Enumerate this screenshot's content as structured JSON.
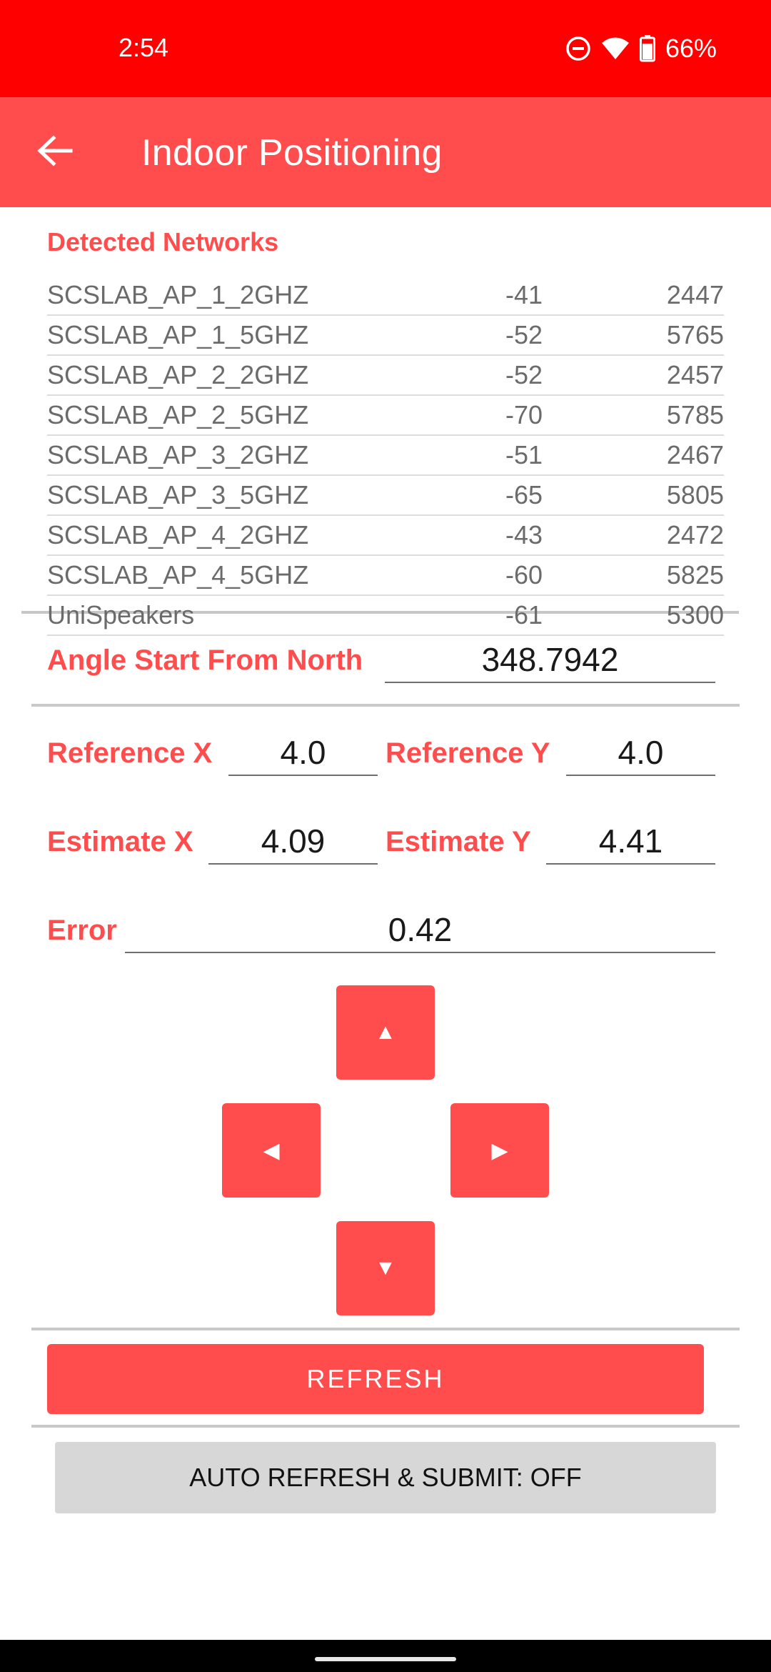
{
  "status_bar": {
    "time": "2:54",
    "battery": "66%"
  },
  "app_bar": {
    "title": "Indoor Positioning"
  },
  "networks": {
    "title": "Detected Networks",
    "rows": [
      {
        "ssid": "SCSLAB_AP_1_2GHZ",
        "rssi": "-41",
        "freq": "2447"
      },
      {
        "ssid": "SCSLAB_AP_1_5GHZ",
        "rssi": "-52",
        "freq": "5765"
      },
      {
        "ssid": "SCSLAB_AP_2_2GHZ",
        "rssi": "-52",
        "freq": "2457"
      },
      {
        "ssid": "SCSLAB_AP_2_5GHZ",
        "rssi": "-70",
        "freq": "5785"
      },
      {
        "ssid": "SCSLAB_AP_3_2GHZ",
        "rssi": "-51",
        "freq": "2467"
      },
      {
        "ssid": "SCSLAB_AP_3_5GHZ",
        "rssi": "-65",
        "freq": "5805"
      },
      {
        "ssid": "SCSLAB_AP_4_2GHZ",
        "rssi": "-43",
        "freq": "2472"
      },
      {
        "ssid": "SCSLAB_AP_4_5GHZ",
        "rssi": "-60",
        "freq": "5825"
      },
      {
        "ssid": "UniSpeakers",
        "rssi": "-61",
        "freq": "5300"
      }
    ]
  },
  "form": {
    "angle_label": "Angle Start From North",
    "angle_value": "348.7942",
    "ref_x_label": "Reference X",
    "ref_x_value": "4.0",
    "ref_y_label": "Reference Y",
    "ref_y_value": "4.0",
    "est_x_label": "Estimate X",
    "est_x_value": "4.09",
    "est_y_label": "Estimate Y",
    "est_y_value": "4.41",
    "error_label": "Error",
    "error_value": "0.42"
  },
  "dpad": {
    "up": "▲",
    "left": "◀",
    "right": "▶",
    "down": "▼"
  },
  "buttons": {
    "refresh": "REFRESH",
    "auto_refresh": "AUTO REFRESH & SUBMIT: OFF"
  },
  "colors": {
    "status_bar": "#ff0000",
    "accent": "#ff4c4c",
    "secondary_button": "#d7d7d7"
  }
}
